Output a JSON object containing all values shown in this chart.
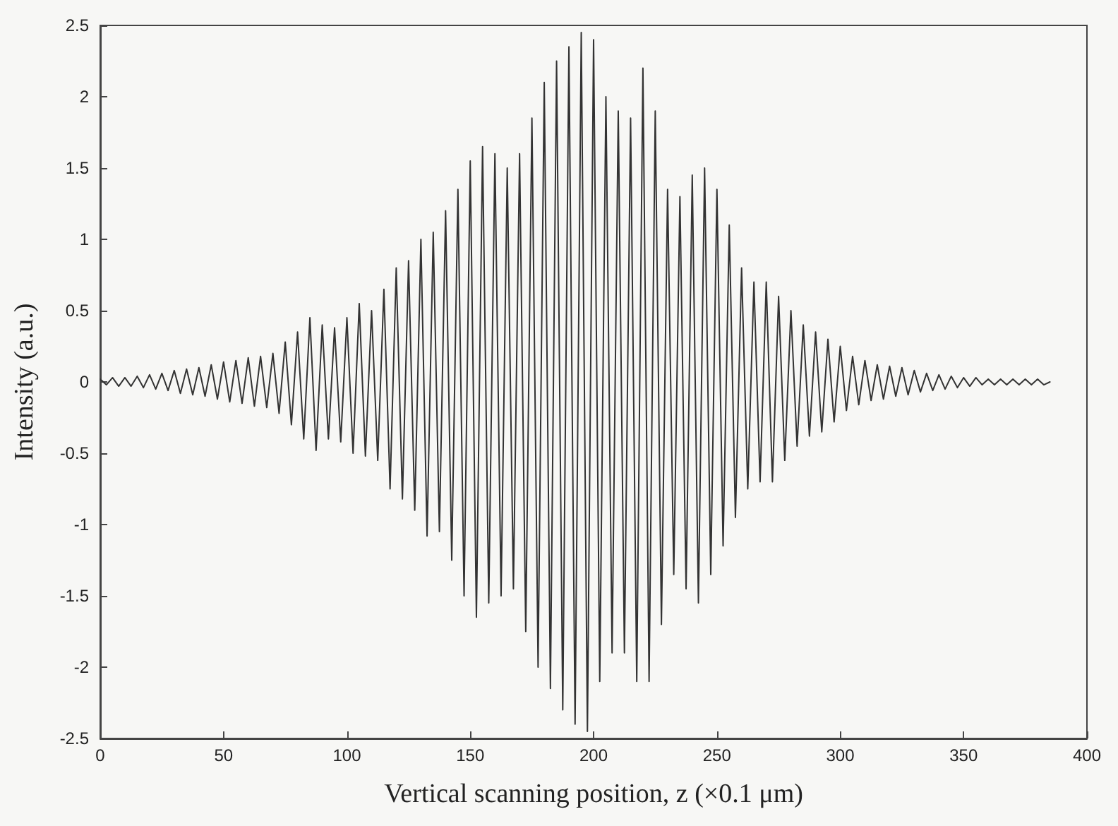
{
  "chart_data": {
    "type": "line",
    "xlabel": "Vertical scanning position, z (×0.1 μm)",
    "ylabel": "Intensity (a.u.)",
    "xlim": [
      0,
      400
    ],
    "xticks": [
      0,
      50,
      100,
      150,
      200,
      250,
      300,
      350,
      400
    ],
    "ylim": [
      -2.5,
      2.5
    ],
    "yticks": [
      -2.5,
      -2,
      -1.5,
      -1,
      -0.5,
      0,
      0.5,
      1,
      1.5,
      2,
      2.5
    ],
    "grid": false,
    "marker": "none",
    "line_style": "solid",
    "series": [
      {
        "color": "#333333",
        "x": [
          0,
          2.5,
          5,
          7.5,
          10,
          12.5,
          15,
          17.5,
          20,
          22.5,
          25,
          27.5,
          30,
          32.5,
          35,
          37.5,
          40,
          42.5,
          45,
          47.5,
          50,
          52.5,
          55,
          57.5,
          60,
          62.5,
          65,
          67.5,
          70,
          72.5,
          75,
          77.5,
          80,
          82.5,
          85,
          87.5,
          90,
          92.5,
          95,
          97.5,
          100,
          102.5,
          105,
          107.5,
          110,
          112.5,
          115,
          117.5,
          120,
          122.5,
          125,
          127.5,
          130,
          132.5,
          135,
          137.5,
          140,
          142.5,
          145,
          147.5,
          150,
          152.5,
          155,
          157.5,
          160,
          162.5,
          165,
          167.5,
          170,
          172.5,
          175,
          177.5,
          180,
          182.5,
          185,
          187.5,
          190,
          192.5,
          195,
          197.5,
          200,
          202.5,
          205,
          207.5,
          210,
          212.5,
          215,
          217.5,
          220,
          222.5,
          225,
          227.5,
          230,
          232.5,
          235,
          237.5,
          240,
          242.5,
          245,
          247.5,
          250,
          252.5,
          255,
          257.5,
          260,
          262.5,
          265,
          267.5,
          270,
          272.5,
          275,
          277.5,
          280,
          282.5,
          285,
          287.5,
          290,
          292.5,
          295,
          297.5,
          300,
          302.5,
          305,
          307.5,
          310,
          312.5,
          315,
          317.5,
          320,
          322.5,
          325,
          327.5,
          330,
          332.5,
          335,
          337.5,
          340,
          342.5,
          345,
          347.5,
          350,
          352.5,
          355,
          357.5,
          360,
          362.5,
          365,
          367.5,
          370,
          372.5,
          375,
          377.5,
          380,
          382.5,
          385
        ],
        "values": [
          0.02,
          -0.02,
          0.03,
          -0.03,
          0.03,
          -0.03,
          0.04,
          -0.04,
          0.05,
          -0.05,
          0.06,
          -0.06,
          0.08,
          -0.08,
          0.09,
          -0.09,
          0.1,
          -0.1,
          0.12,
          -0.12,
          0.14,
          -0.14,
          0.15,
          -0.15,
          0.17,
          -0.17,
          0.18,
          -0.18,
          0.2,
          -0.22,
          0.28,
          -0.3,
          0.35,
          -0.4,
          0.45,
          -0.48,
          0.4,
          -0.4,
          0.38,
          -0.42,
          0.45,
          -0.5,
          0.55,
          -0.52,
          0.5,
          -0.55,
          0.65,
          -0.75,
          0.8,
          -0.82,
          0.85,
          -0.9,
          1.0,
          -1.08,
          1.05,
          -1.05,
          1.2,
          -1.25,
          1.35,
          -1.5,
          1.55,
          -1.65,
          1.65,
          -1.55,
          1.6,
          -1.5,
          1.5,
          -1.45,
          1.6,
          -1.75,
          1.85,
          -2.0,
          2.1,
          -2.15,
          2.25,
          -2.3,
          2.35,
          -2.4,
          2.45,
          -2.45,
          2.4,
          -2.1,
          2.0,
          -1.9,
          1.9,
          -1.9,
          1.85,
          -2.1,
          2.2,
          -2.1,
          1.9,
          -1.7,
          1.35,
          -1.35,
          1.3,
          -1.45,
          1.45,
          -1.55,
          1.5,
          -1.35,
          1.35,
          -1.15,
          1.1,
          -0.95,
          0.8,
          -0.75,
          0.7,
          -0.7,
          0.7,
          -0.7,
          0.6,
          -0.55,
          0.5,
          -0.45,
          0.4,
          -0.38,
          0.35,
          -0.35,
          0.3,
          -0.28,
          0.25,
          -0.2,
          0.18,
          -0.16,
          0.15,
          -0.13,
          0.12,
          -0.12,
          0.11,
          -0.1,
          0.1,
          -0.09,
          0.08,
          -0.07,
          0.06,
          -0.06,
          0.05,
          -0.05,
          0.04,
          -0.04,
          0.03,
          -0.03,
          0.03,
          -0.02,
          0.02,
          -0.02,
          0.02,
          -0.02,
          0.02,
          -0.02,
          0.02,
          -0.02,
          0.02,
          -0.02,
          0
        ]
      }
    ]
  }
}
